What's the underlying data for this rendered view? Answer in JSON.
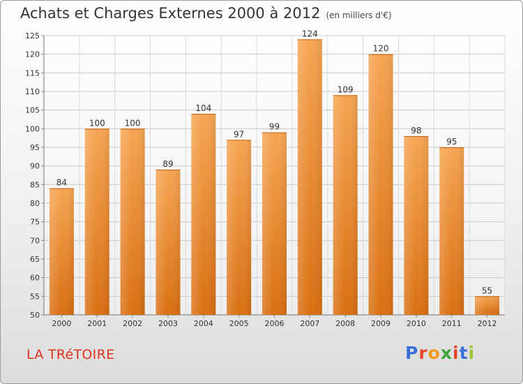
{
  "header": {
    "title": "Achats et Charges Externes 2000 à 2012",
    "subtitle": "(en milliers d'€)"
  },
  "footer": {
    "town": "LA TRéTOIRE",
    "brand": "Proxiti",
    "brand_colors": [
      "#3a6fd8",
      "#e8452c",
      "#f29a1d",
      "#3aa63a",
      "#e8452c",
      "#3a6fd8",
      "#9fc93a"
    ]
  },
  "chart_data": {
    "type": "bar",
    "title": "Achats et Charges Externes 2000 à 2012",
    "subtitle": "(en milliers d'€)",
    "categories": [
      "2000",
      "2001",
      "2002",
      "2003",
      "2004",
      "2005",
      "2006",
      "2007",
      "2008",
      "2009",
      "2010",
      "2011",
      "2012"
    ],
    "values": [
      84,
      100,
      100,
      89,
      104,
      97,
      99,
      124,
      109,
      120,
      98,
      95,
      55
    ],
    "ylim": [
      50,
      125
    ],
    "yticks": [
      50,
      55,
      60,
      65,
      70,
      75,
      80,
      85,
      90,
      95,
      100,
      105,
      110,
      115,
      120,
      125
    ],
    "grid": true,
    "bar_color": "#f0912f",
    "xlabel": "",
    "ylabel": ""
  }
}
